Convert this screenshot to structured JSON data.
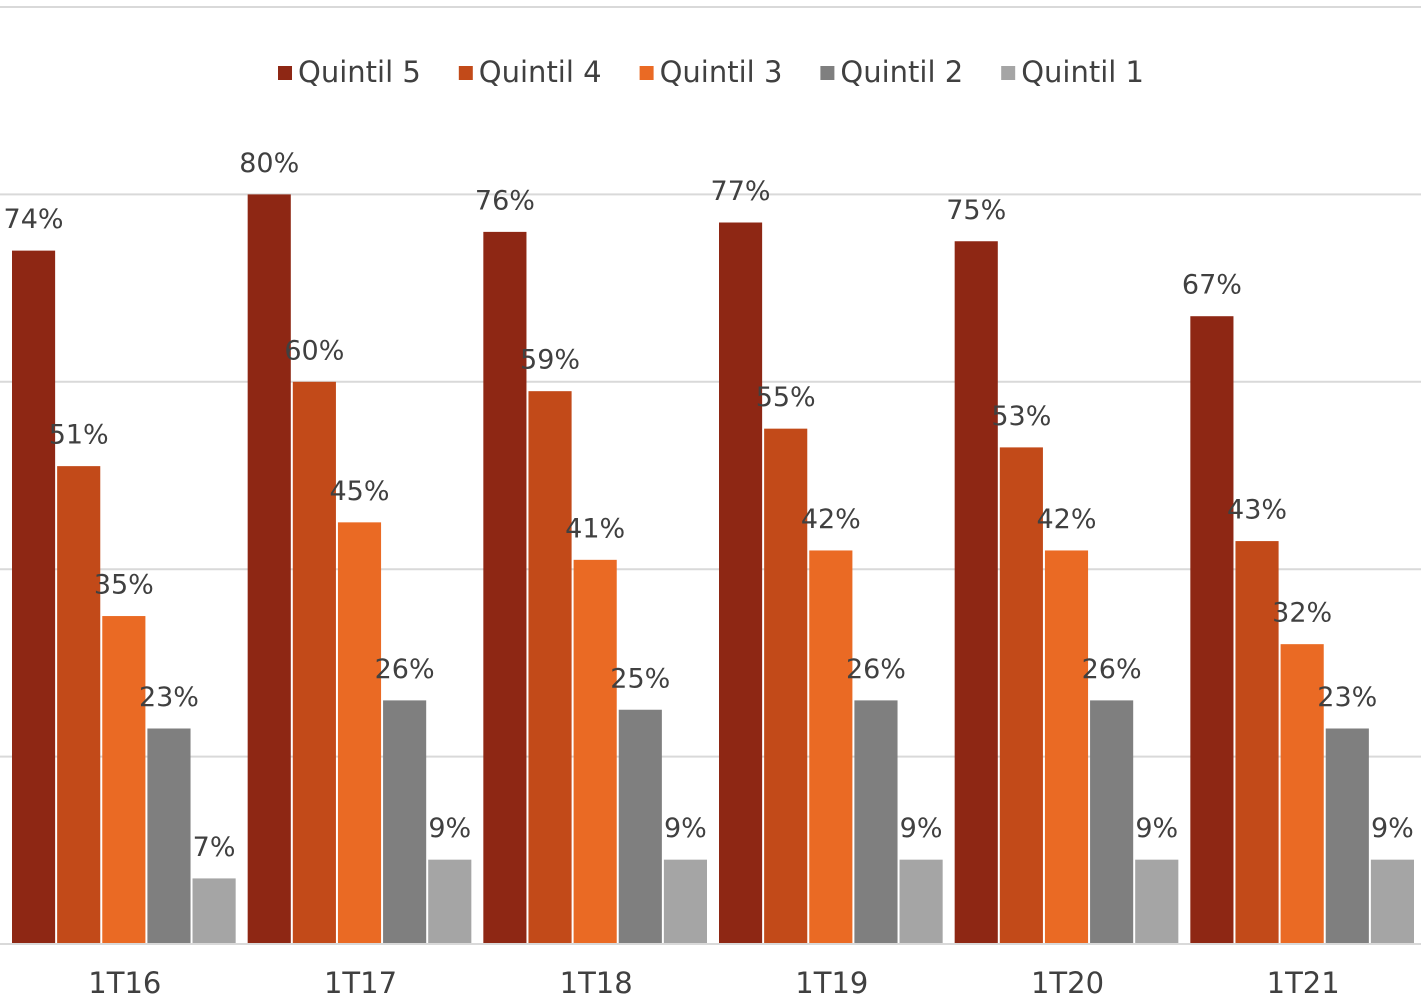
{
  "chart_data": {
    "type": "bar",
    "categories": [
      "1T16",
      "1T17",
      "1T18",
      "1T19",
      "1T20",
      "1T21"
    ],
    "series": [
      {
        "name": "Quintil 5",
        "color": "#8e2714",
        "values": [
          74,
          80,
          76,
          77,
          75,
          67
        ],
        "value_labels": [
          "74%",
          "80%",
          "76%",
          "77%",
          "75%",
          "67%"
        ]
      },
      {
        "name": "Quintil 4",
        "color": "#c24a19",
        "values": [
          51,
          60,
          59,
          55,
          53,
          43
        ],
        "value_labels": [
          "51%",
          "60%",
          "59%",
          "55%",
          "53%",
          "43%"
        ]
      },
      {
        "name": "Quintil 3",
        "color": "#ea6a24",
        "values": [
          35,
          45,
          41,
          42,
          42,
          32
        ],
        "value_labels": [
          "35%",
          "45%",
          "41%",
          "42%",
          "42%",
          "32%"
        ]
      },
      {
        "name": "Quintil 2",
        "color": "#7f7f7f",
        "values": [
          23,
          26,
          25,
          26,
          26,
          23
        ],
        "value_labels": [
          "23%",
          "26%",
          "25%",
          "26%",
          "26%",
          "23%"
        ]
      },
      {
        "name": "Quintil 1",
        "color": "#a5a5a5",
        "values": [
          7,
          9,
          9,
          9,
          9,
          9
        ],
        "value_labels": [
          "7%",
          "9%",
          "9%",
          "9%",
          "9%",
          "9%"
        ]
      }
    ],
    "ylim": [
      0,
      100
    ],
    "yticks": [
      0,
      20,
      40,
      60,
      80,
      100
    ],
    "grid": true,
    "legend": "top"
  }
}
